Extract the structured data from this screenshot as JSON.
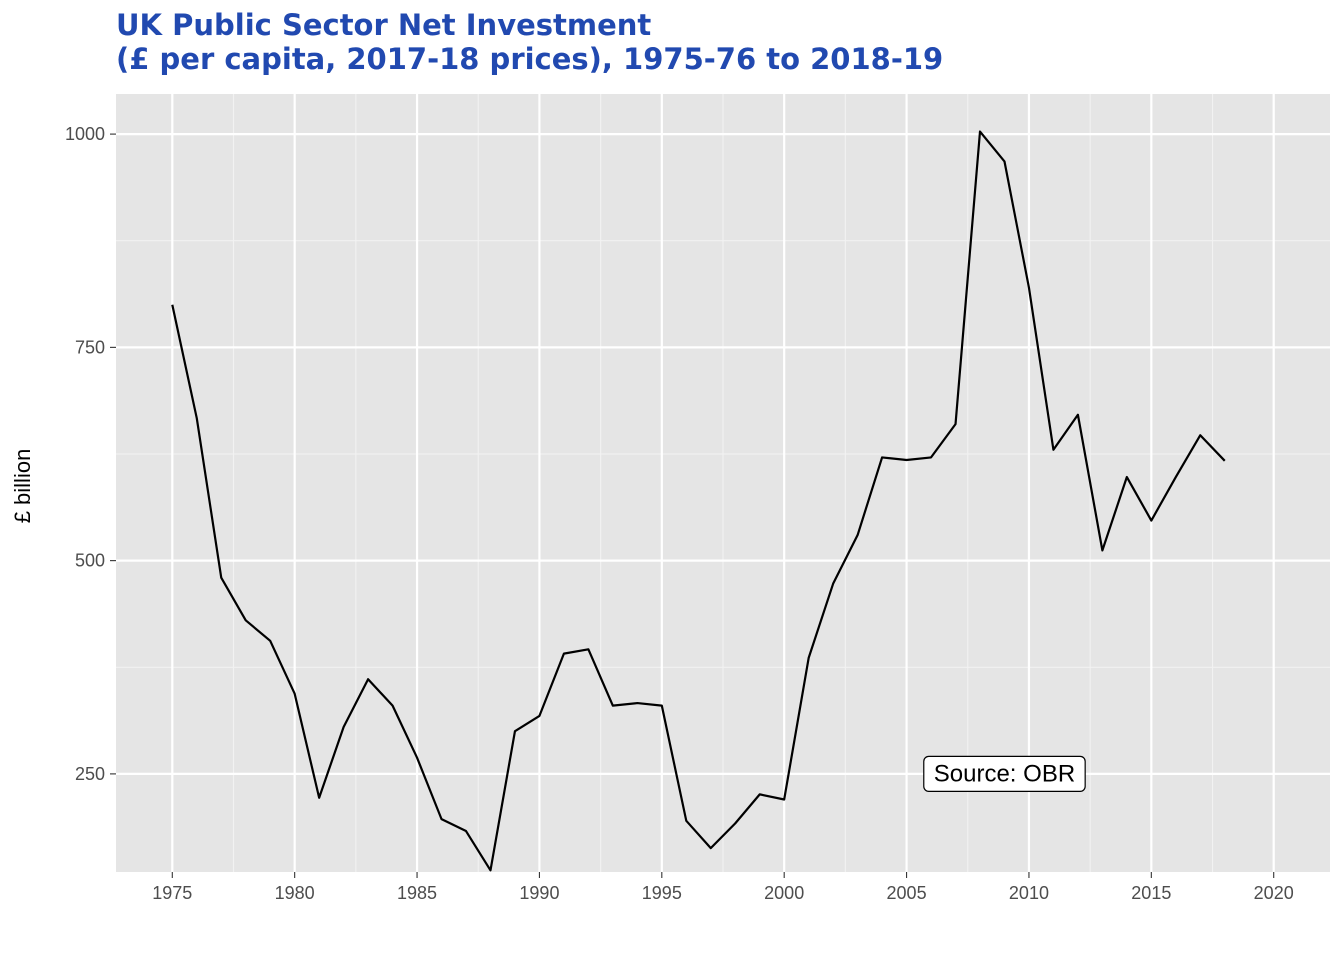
{
  "chart_data": {
    "type": "line",
    "title_lines": [
      "UK Public Sector Net Investment",
      "(£ per capita, 2017-18 prices), 1975-76 to 2018-19"
    ],
    "xlabel": "",
    "ylabel": "£ billion",
    "xlim": [
      1972.7,
      2022.3
    ],
    "ylim": [
      135,
      1047
    ],
    "x_ticks": [
      1975,
      1980,
      1985,
      1990,
      1995,
      2000,
      2005,
      2010,
      2015,
      2020
    ],
    "y_ticks": [
      250,
      500,
      750,
      1000
    ],
    "grid": true,
    "annotation": "Source: OBR",
    "annotation_x": 2009,
    "annotation_y": 250,
    "line_color": "#000000",
    "panel_color": "#e5e5e5",
    "x": [
      1975,
      1976,
      1977,
      1978,
      1979,
      1980,
      1981,
      1982,
      1983,
      1984,
      1985,
      1986,
      1987,
      1988,
      1989,
      1990,
      1991,
      1992,
      1993,
      1994,
      1995,
      1996,
      1997,
      1998,
      1999,
      2000,
      2001,
      2002,
      2003,
      2004,
      2005,
      2006,
      2007,
      2008,
      2009,
      2010,
      2011,
      2012,
      2013,
      2014,
      2015,
      2016,
      2017,
      2018
    ],
    "y": [
      800,
      667,
      480,
      430,
      406,
      344,
      222,
      305,
      361,
      330,
      269,
      197,
      183,
      137,
      300,
      318,
      391,
      396,
      330,
      333,
      330,
      195,
      163,
      192,
      226,
      220,
      386,
      473,
      530,
      621,
      618,
      621,
      660,
      1003,
      968,
      820,
      630,
      671,
      512,
      598,
      547,
      598,
      647,
      617
    ]
  }
}
